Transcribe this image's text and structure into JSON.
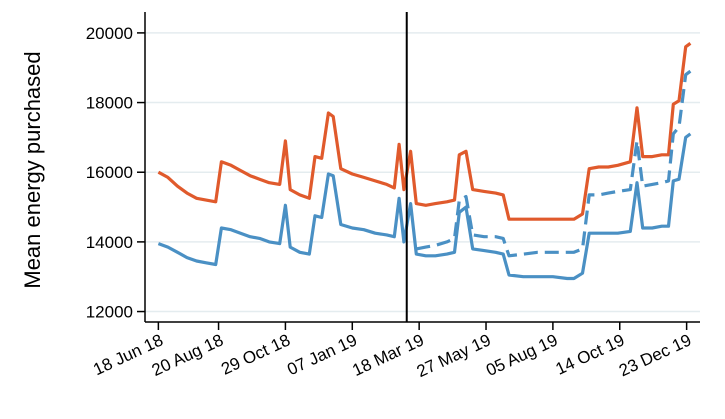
{
  "chart_data": {
    "type": "line",
    "title": "",
    "xlabel": "",
    "ylabel": "Mean energy purchased",
    "ylim": [
      11700,
      20600
    ],
    "yticks": [
      12000,
      14000,
      16000,
      18000,
      20000
    ],
    "ytick_labels": [
      "12000",
      "14000",
      "16000",
      "18000",
      "20000"
    ],
    "xlim": [
      "2018-06-04",
      "2020-01-06"
    ],
    "xticks": [
      "2018-06-18",
      "2018-08-20",
      "2018-10-29",
      "2019-01-07",
      "2019-03-18",
      "2019-05-27",
      "2019-08-05",
      "2019-10-14",
      "2019-12-23"
    ],
    "xtick_labels": [
      "18 Jun 18",
      "20 Aug 18",
      "29 Oct 18",
      "07 Jan 19",
      "18 Mar 19",
      "27 May 19",
      "05 Aug 19",
      "14 Oct 19",
      "23 Dec 19"
    ],
    "grid": "horizontal",
    "legend": "none",
    "vline": "2019-03-05",
    "series": [
      {
        "color": "#e05a2c",
        "style": "solid",
        "points": [
          [
            "2018-06-18",
            16000
          ],
          [
            "2018-06-28",
            15850
          ],
          [
            "2018-07-08",
            15600
          ],
          [
            "2018-07-18",
            15400
          ],
          [
            "2018-07-28",
            15250
          ],
          [
            "2018-08-07",
            15200
          ],
          [
            "2018-08-17",
            15150
          ],
          [
            "2018-08-23",
            16300
          ],
          [
            "2018-09-02",
            16200
          ],
          [
            "2018-09-12",
            16050
          ],
          [
            "2018-09-22",
            15900
          ],
          [
            "2018-10-02",
            15800
          ],
          [
            "2018-10-12",
            15700
          ],
          [
            "2018-10-23",
            15650
          ],
          [
            "2018-10-29",
            16900
          ],
          [
            "2018-11-03",
            15500
          ],
          [
            "2018-11-13",
            15350
          ],
          [
            "2018-11-23",
            15250
          ],
          [
            "2018-11-29",
            16450
          ],
          [
            "2018-12-06",
            16400
          ],
          [
            "2018-12-13",
            17700
          ],
          [
            "2018-12-18",
            17600
          ],
          [
            "2018-12-26",
            16100
          ],
          [
            "2019-01-07",
            15950
          ],
          [
            "2019-01-19",
            15850
          ],
          [
            "2019-01-31",
            15750
          ],
          [
            "2019-02-12",
            15650
          ],
          [
            "2019-02-20",
            15550
          ],
          [
            "2019-02-25",
            16800
          ],
          [
            "2019-03-02",
            15500
          ],
          [
            "2019-03-09",
            16600
          ],
          [
            "2019-03-15",
            15100
          ],
          [
            "2019-03-25",
            15050
          ],
          [
            "2019-04-04",
            15100
          ],
          [
            "2019-04-16",
            15150
          ],
          [
            "2019-04-24",
            15200
          ],
          [
            "2019-04-29",
            16500
          ],
          [
            "2019-05-06",
            16600
          ],
          [
            "2019-05-13",
            15500
          ],
          [
            "2019-05-25",
            15450
          ],
          [
            "2019-06-06",
            15400
          ],
          [
            "2019-06-14",
            15350
          ],
          [
            "2019-06-20",
            14650
          ],
          [
            "2019-07-05",
            14650
          ],
          [
            "2019-07-20",
            14650
          ],
          [
            "2019-08-05",
            14650
          ],
          [
            "2019-08-20",
            14650
          ],
          [
            "2019-08-27",
            14650
          ],
          [
            "2019-09-05",
            14800
          ],
          [
            "2019-09-12",
            16100
          ],
          [
            "2019-09-22",
            16150
          ],
          [
            "2019-10-02",
            16150
          ],
          [
            "2019-10-12",
            16200
          ],
          [
            "2019-10-25",
            16300
          ],
          [
            "2019-11-01",
            17850
          ],
          [
            "2019-11-07",
            16450
          ],
          [
            "2019-11-17",
            16450
          ],
          [
            "2019-11-27",
            16500
          ],
          [
            "2019-12-04",
            16500
          ],
          [
            "2019-12-09",
            17950
          ],
          [
            "2019-12-15",
            18050
          ],
          [
            "2019-12-22",
            19600
          ],
          [
            "2019-12-27",
            19700
          ]
        ]
      },
      {
        "color": "#4a90c4",
        "style": "solid",
        "points": [
          [
            "2018-06-18",
            13950
          ],
          [
            "2018-06-28",
            13850
          ],
          [
            "2018-07-08",
            13700
          ],
          [
            "2018-07-18",
            13550
          ],
          [
            "2018-07-28",
            13450
          ],
          [
            "2018-08-07",
            13400
          ],
          [
            "2018-08-17",
            13350
          ],
          [
            "2018-08-23",
            14400
          ],
          [
            "2018-09-02",
            14350
          ],
          [
            "2018-09-12",
            14250
          ],
          [
            "2018-09-22",
            14150
          ],
          [
            "2018-10-02",
            14100
          ],
          [
            "2018-10-12",
            14000
          ],
          [
            "2018-10-23",
            13950
          ],
          [
            "2018-10-29",
            15050
          ],
          [
            "2018-11-03",
            13850
          ],
          [
            "2018-11-13",
            13700
          ],
          [
            "2018-11-23",
            13650
          ],
          [
            "2018-11-29",
            14750
          ],
          [
            "2018-12-06",
            14700
          ],
          [
            "2018-12-13",
            15950
          ],
          [
            "2018-12-18",
            15900
          ],
          [
            "2018-12-26",
            14500
          ],
          [
            "2019-01-07",
            14400
          ],
          [
            "2019-01-19",
            14350
          ],
          [
            "2019-01-31",
            14250
          ],
          [
            "2019-02-12",
            14200
          ],
          [
            "2019-02-20",
            14150
          ],
          [
            "2019-02-25",
            15250
          ],
          [
            "2019-03-02",
            14000
          ],
          [
            "2019-03-09",
            15100
          ],
          [
            "2019-03-15",
            13650
          ],
          [
            "2019-03-25",
            13600
          ],
          [
            "2019-04-04",
            13600
          ],
          [
            "2019-04-16",
            13650
          ],
          [
            "2019-04-24",
            13700
          ],
          [
            "2019-04-29",
            14850
          ],
          [
            "2019-05-06",
            15000
          ],
          [
            "2019-05-13",
            13800
          ],
          [
            "2019-05-25",
            13750
          ],
          [
            "2019-06-06",
            13700
          ],
          [
            "2019-06-14",
            13650
          ],
          [
            "2019-06-20",
            13050
          ],
          [
            "2019-07-05",
            13000
          ],
          [
            "2019-07-20",
            13000
          ],
          [
            "2019-08-05",
            13000
          ],
          [
            "2019-08-20",
            12950
          ],
          [
            "2019-08-27",
            12950
          ],
          [
            "2019-09-05",
            13100
          ],
          [
            "2019-09-12",
            14250
          ],
          [
            "2019-09-22",
            14250
          ],
          [
            "2019-10-02",
            14250
          ],
          [
            "2019-10-12",
            14250
          ],
          [
            "2019-10-25",
            14300
          ],
          [
            "2019-11-01",
            15700
          ],
          [
            "2019-11-07",
            14400
          ],
          [
            "2019-11-17",
            14400
          ],
          [
            "2019-11-27",
            14450
          ],
          [
            "2019-12-04",
            14450
          ],
          [
            "2019-12-09",
            15750
          ],
          [
            "2019-12-15",
            15800
          ],
          [
            "2019-12-22",
            17000
          ],
          [
            "2019-12-27",
            17100
          ]
        ]
      },
      {
        "color": "#4a90c4",
        "style": "dashed",
        "points": [
          [
            "2019-03-15",
            13800
          ],
          [
            "2019-03-25",
            13850
          ],
          [
            "2019-04-04",
            13900
          ],
          [
            "2019-04-16",
            14000
          ],
          [
            "2019-04-24",
            14100
          ],
          [
            "2019-04-29",
            15200
          ],
          [
            "2019-05-06",
            15300
          ],
          [
            "2019-05-13",
            14200
          ],
          [
            "2019-05-25",
            14150
          ],
          [
            "2019-06-06",
            14150
          ],
          [
            "2019-06-14",
            14100
          ],
          [
            "2019-06-20",
            13600
          ],
          [
            "2019-07-05",
            13650
          ],
          [
            "2019-07-20",
            13700
          ],
          [
            "2019-08-05",
            13700
          ],
          [
            "2019-08-20",
            13700
          ],
          [
            "2019-08-27",
            13700
          ],
          [
            "2019-09-05",
            13800
          ],
          [
            "2019-09-12",
            15350
          ],
          [
            "2019-09-22",
            15350
          ],
          [
            "2019-10-02",
            15400
          ],
          [
            "2019-10-12",
            15450
          ],
          [
            "2019-10-25",
            15500
          ],
          [
            "2019-11-01",
            16900
          ],
          [
            "2019-11-07",
            15600
          ],
          [
            "2019-11-17",
            15650
          ],
          [
            "2019-11-27",
            15700
          ],
          [
            "2019-12-04",
            15750
          ],
          [
            "2019-12-09",
            17100
          ],
          [
            "2019-12-15",
            17300
          ],
          [
            "2019-12-22",
            18800
          ],
          [
            "2019-12-27",
            18900
          ]
        ]
      }
    ]
  }
}
